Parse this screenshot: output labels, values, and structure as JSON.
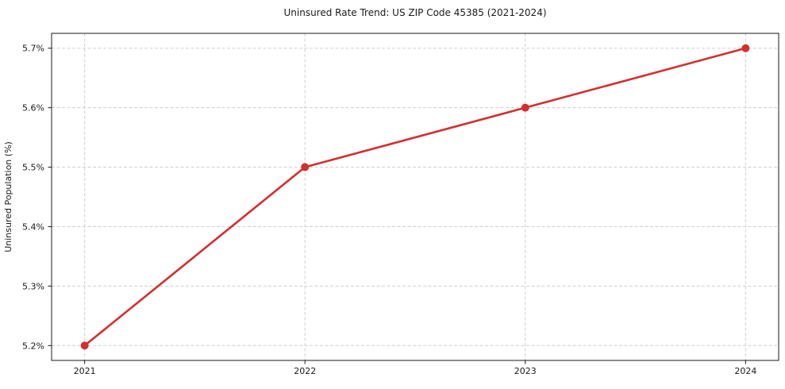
{
  "chart_data": {
    "type": "line",
    "title": "Uninsured Rate Trend: US ZIP Code 45385 (2021-2024)",
    "xlabel": "",
    "ylabel": "Uninsured Population (%)",
    "x": [
      2021,
      2022,
      2023,
      2024
    ],
    "values": [
      5.2,
      5.5,
      5.6,
      5.7
    ],
    "series_name": "Uninsured rate (%)",
    "xlim": [
      2020.85,
      2024.15
    ],
    "ylim": [
      5.175,
      5.725
    ],
    "xticks": {
      "values": [
        2021,
        2022,
        2023,
        2024
      ],
      "labels": [
        "2021",
        "2022",
        "2023",
        "2024"
      ]
    },
    "yticks": {
      "values": [
        5.2,
        5.3,
        5.4,
        5.5,
        5.6,
        5.7
      ],
      "labels": [
        "5.2%",
        "5.3%",
        "5.4%",
        "5.5%",
        "5.6%",
        "5.7%"
      ]
    },
    "grid": true,
    "grid_style": "dashed",
    "legend": false,
    "line_color": "#d32f2f",
    "line_width": 2.6,
    "marker": "circle",
    "marker_size": 5,
    "grid_color": "#cfcfcf",
    "spine_color": "#1a1a1a",
    "text_color": "#1a1a1a",
    "background": "#ffffff"
  }
}
